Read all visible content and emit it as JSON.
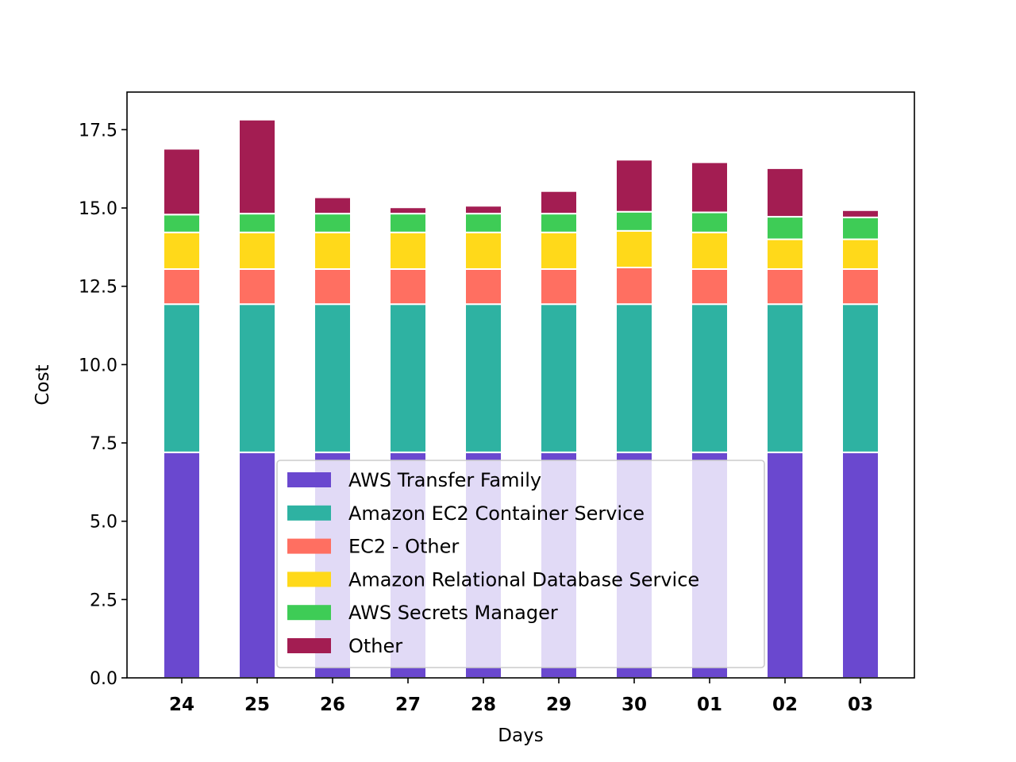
{
  "chart_data": {
    "type": "bar",
    "stacked": true,
    "title": "",
    "xlabel": "Days",
    "ylabel": "Cost",
    "ylim": [
      0,
      18.7
    ],
    "yticks": [
      0.0,
      2.5,
      5.0,
      7.5,
      10.0,
      12.5,
      15.0,
      17.5
    ],
    "ytick_labels": [
      "0.0",
      "2.5",
      "5.0",
      "7.5",
      "10.0",
      "12.5",
      "15.0",
      "17.5"
    ],
    "categories": [
      "24",
      "25",
      "26",
      "27",
      "28",
      "29",
      "30",
      "01",
      "02",
      "03"
    ],
    "grid": false,
    "legend_position": "bottom-center",
    "series": [
      {
        "name": "AWS Transfer Family",
        "color": "#6a48cf",
        "values": [
          7.2,
          7.2,
          7.2,
          7.2,
          7.2,
          7.2,
          7.2,
          7.2,
          7.2,
          7.2
        ]
      },
      {
        "name": "Amazon EC2 Container Service",
        "color": "#2eb2a2",
        "values": [
          4.73,
          4.73,
          4.73,
          4.73,
          4.73,
          4.73,
          4.73,
          4.73,
          4.73,
          4.73
        ]
      },
      {
        "name": "EC2 - Other",
        "color": "#ff6f61",
        "values": [
          1.12,
          1.12,
          1.12,
          1.12,
          1.12,
          1.12,
          1.17,
          1.12,
          1.12,
          1.12
        ]
      },
      {
        "name": "Amazon Relational Database Service",
        "color": "#ffd91a",
        "values": [
          1.17,
          1.17,
          1.17,
          1.17,
          1.17,
          1.17,
          1.17,
          1.17,
          0.95,
          0.95
        ]
      },
      {
        "name": "AWS Secrets Manager",
        "color": "#3ecc56",
        "values": [
          0.57,
          0.6,
          0.6,
          0.6,
          0.6,
          0.6,
          0.61,
          0.64,
          0.72,
          0.7
        ]
      },
      {
        "name": "Other",
        "color": "#a31d52",
        "values": [
          2.1,
          3.0,
          0.52,
          0.2,
          0.25,
          0.72,
          1.66,
          1.6,
          1.55,
          0.23
        ]
      }
    ]
  }
}
